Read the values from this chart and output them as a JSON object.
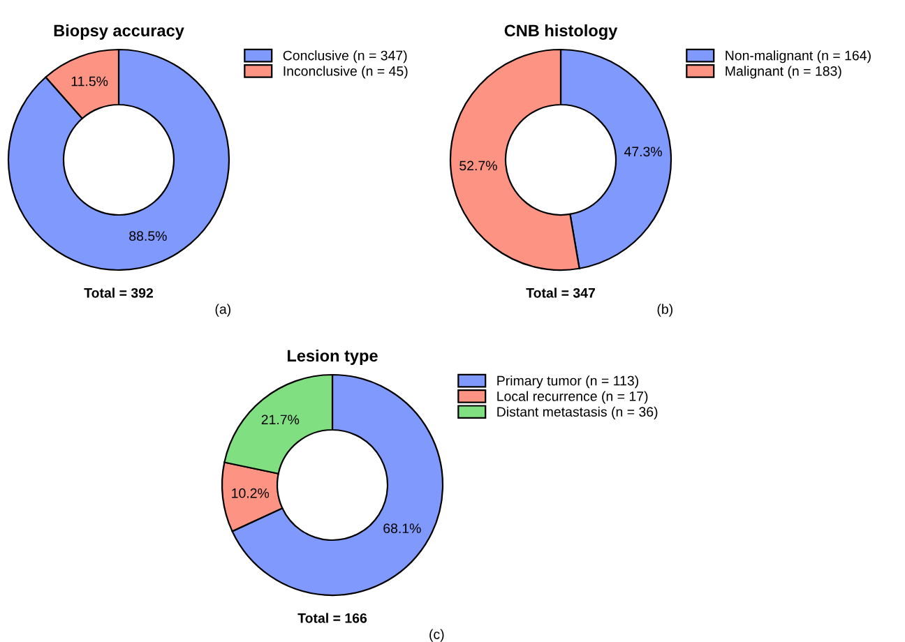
{
  "chart_data": [
    {
      "type": "donut",
      "title": "Biopsy accuracy",
      "categories": [
        "Conclusive (n = 347)",
        "Inconclusive (n = 45)"
      ],
      "values": [
        88.5,
        11.5
      ],
      "colors": [
        "#8099fd",
        "#fd9483"
      ],
      "value_labels": [
        "88.5%",
        "11.5%"
      ],
      "legend": "right",
      "annotations": [
        "Total = 392",
        "(a)"
      ]
    },
    {
      "type": "donut",
      "title": "CNB histology",
      "categories": [
        "Non-malignant (n = 164)",
        "Malignant (n = 183)"
      ],
      "values": [
        47.3,
        52.7
      ],
      "colors": [
        "#8099fd",
        "#fd9483"
      ],
      "value_labels": [
        "47.3%",
        "52.7%"
      ],
      "legend": "right",
      "annotations": [
        "Total = 347",
        "(b)"
      ]
    },
    {
      "type": "donut",
      "title": "Lesion type",
      "categories": [
        "Primary tumor (n = 113)",
        "Local recurrence (n = 17)",
        "Distant metastasis (n = 36)"
      ],
      "values": [
        68.1,
        10.2,
        21.7
      ],
      "colors": [
        "#8099fd",
        "#fd9483",
        "#80e081"
      ],
      "value_labels": [
        "68.1%",
        "10.2%",
        "21.7%"
      ],
      "legend": "right",
      "annotations": [
        "Total = 166",
        "(c)"
      ]
    }
  ]
}
